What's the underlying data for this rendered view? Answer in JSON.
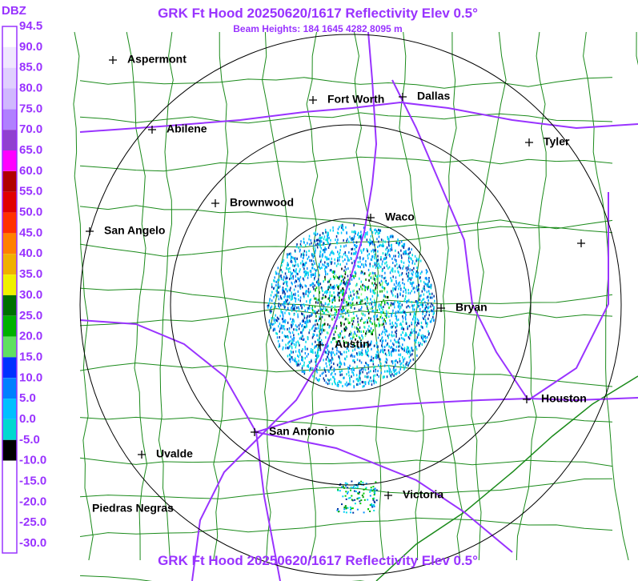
{
  "title": "GRK Ft Hood 20250620/1617 Reflectivity Elev 0.5°",
  "subtitle": "Beam Heights: 184 1645 4282 8095 m",
  "footer": "GRK Ft Hood 20250620/1617 Reflectivity Elev 0.5°",
  "legend": {
    "unit": "DBZ",
    "labels": [
      "94.5",
      "90.0",
      "85.0",
      "80.0",
      "75.0",
      "70.0",
      "65.0",
      "60.0",
      "55.0",
      "50.0",
      "45.0",
      "40.0",
      "35.0",
      "30.0",
      "25.0",
      "20.0",
      "15.0",
      "10.0",
      "5.0",
      "0.0",
      "-5.0",
      "-10.0",
      "-15.0",
      "-20.0",
      "-25.0",
      "-30.0"
    ]
  },
  "cities": [
    {
      "label": "Aspermont"
    },
    {
      "label": "Fort Worth"
    },
    {
      "label": "Dallas"
    },
    {
      "label": "Abilene"
    },
    {
      "label": "Tyler"
    },
    {
      "label": "Brownwood"
    },
    {
      "label": "Waco"
    },
    {
      "label": "San Angelo"
    },
    {
      "label": "Bryan"
    },
    {
      "label": "Austin"
    },
    {
      "label": "Houston"
    },
    {
      "label": "San Antonio"
    },
    {
      "label": "Uvalde"
    },
    {
      "label": "Victoria"
    },
    {
      "label": "Piedras Negras"
    }
  ]
}
